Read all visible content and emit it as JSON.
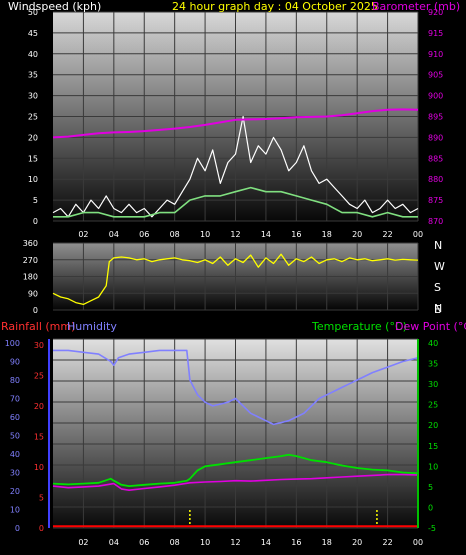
{
  "header": {
    "windspeed_label": "Windspeed (kph)",
    "title": "24 hour graph day : 04 October 2025",
    "barometer_label": "Barometer (mb)"
  },
  "bottom_header": {
    "rainfall_label": "Rainfall (mm)",
    "humidity_label": "Humidity",
    "temperature_label": "Temperature (°C)",
    "dewpoint_label": "Dew Point (°C)"
  },
  "colors": {
    "barometer": "#e000e0",
    "windspeed": "#ffffff",
    "wind_avg": "#80e080",
    "direction": "#ffff00",
    "humidity": "#8080ff",
    "temperature": "#00e000",
    "dewpoint": "#e000e0",
    "rainfall": "#ff0000",
    "header_yellow": "#ffff00"
  },
  "x_tick_labels": [
    "02",
    "04",
    "06",
    "08",
    "10",
    "12",
    "14",
    "16",
    "18",
    "20",
    "22",
    "00"
  ],
  "chart_data": [
    {
      "type": "line",
      "name": "wind-barometer",
      "y_left_ticks": [
        0,
        5,
        10,
        15,
        20,
        25,
        30,
        35,
        40,
        45,
        50
      ],
      "ylim_left": [
        0,
        50
      ],
      "y_right_ticks": [
        870,
        875,
        880,
        885,
        890,
        895,
        900,
        905,
        910,
        915,
        920
      ],
      "ylim_right": [
        870,
        920
      ],
      "barometer": [
        [
          0,
          890.0
        ],
        [
          1,
          890.2
        ],
        [
          2,
          890.6
        ],
        [
          3,
          891.0
        ],
        [
          4,
          891.2
        ],
        [
          5,
          891.3
        ],
        [
          6,
          891.5
        ],
        [
          7,
          891.8
        ],
        [
          8,
          892.1
        ],
        [
          9,
          892.5
        ],
        [
          10,
          893.0
        ],
        [
          11,
          893.6
        ],
        [
          12,
          894.2
        ],
        [
          13,
          894.3
        ],
        [
          14,
          894.4
        ],
        [
          15,
          894.6
        ],
        [
          16,
          894.8
        ],
        [
          17,
          894.9
        ],
        [
          18,
          895.0
        ],
        [
          19,
          895.3
        ],
        [
          20,
          895.8
        ],
        [
          21,
          896.3
        ],
        [
          22,
          896.6
        ],
        [
          23,
          896.7
        ],
        [
          24,
          896.6
        ]
      ],
      "wind_gust": [
        [
          0,
          2
        ],
        [
          0.5,
          3
        ],
        [
          1,
          1
        ],
        [
          1.5,
          4
        ],
        [
          2,
          2
        ],
        [
          2.5,
          5
        ],
        [
          3,
          3
        ],
        [
          3.5,
          6
        ],
        [
          4,
          3
        ],
        [
          4.5,
          2
        ],
        [
          5,
          4
        ],
        [
          5.5,
          2
        ],
        [
          6,
          3
        ],
        [
          6.5,
          1
        ],
        [
          7,
          3
        ],
        [
          7.5,
          5
        ],
        [
          8,
          4
        ],
        [
          8.5,
          7
        ],
        [
          9,
          10
        ],
        [
          9.5,
          15
        ],
        [
          10,
          12
        ],
        [
          10.5,
          17
        ],
        [
          11,
          9
        ],
        [
          11.5,
          14
        ],
        [
          12,
          16
        ],
        [
          12.5,
          25
        ],
        [
          13,
          14
        ],
        [
          13.5,
          18
        ],
        [
          14,
          16
        ],
        [
          14.5,
          20
        ],
        [
          15,
          17
        ],
        [
          15.5,
          12
        ],
        [
          16,
          14
        ],
        [
          16.5,
          18
        ],
        [
          17,
          12
        ],
        [
          17.5,
          9
        ],
        [
          18,
          10
        ],
        [
          18.5,
          8
        ],
        [
          19,
          6
        ],
        [
          19.5,
          4
        ],
        [
          20,
          3
        ],
        [
          20.5,
          5
        ],
        [
          21,
          2
        ],
        [
          21.5,
          3
        ],
        [
          22,
          5
        ],
        [
          22.5,
          3
        ],
        [
          23,
          4
        ],
        [
          23.5,
          2
        ],
        [
          24,
          3
        ]
      ],
      "wind_avg": [
        [
          0,
          1
        ],
        [
          1,
          1
        ],
        [
          2,
          2
        ],
        [
          3,
          2
        ],
        [
          4,
          1
        ],
        [
          5,
          1
        ],
        [
          6,
          1
        ],
        [
          7,
          2
        ],
        [
          8,
          2
        ],
        [
          9,
          5
        ],
        [
          10,
          6
        ],
        [
          11,
          6
        ],
        [
          12,
          7
        ],
        [
          13,
          8
        ],
        [
          14,
          7
        ],
        [
          15,
          7
        ],
        [
          16,
          6
        ],
        [
          17,
          5
        ],
        [
          18,
          4
        ],
        [
          19,
          2
        ],
        [
          20,
          2
        ],
        [
          21,
          1
        ],
        [
          22,
          2
        ],
        [
          23,
          1
        ],
        [
          24,
          1
        ]
      ]
    },
    {
      "type": "line",
      "name": "wind-direction",
      "y_left_ticks": [
        0,
        90,
        180,
        270,
        360
      ],
      "ylim": [
        0,
        360
      ],
      "y_right_labels": [
        "N",
        "W",
        "S",
        "E",
        "N"
      ],
      "direction": [
        [
          0,
          90
        ],
        [
          0.5,
          70
        ],
        [
          1,
          60
        ],
        [
          1.5,
          40
        ],
        [
          2,
          30
        ],
        [
          2.5,
          50
        ],
        [
          3,
          70
        ],
        [
          3.5,
          130
        ],
        [
          3.7,
          260
        ],
        [
          4,
          280
        ],
        [
          4.5,
          285
        ],
        [
          5,
          280
        ],
        [
          5.5,
          270
        ],
        [
          6,
          275
        ],
        [
          6.5,
          260
        ],
        [
          7,
          270
        ],
        [
          7.5,
          275
        ],
        [
          8,
          280
        ],
        [
          8.5,
          270
        ],
        [
          9,
          265
        ],
        [
          9.5,
          255
        ],
        [
          10,
          270
        ],
        [
          10.5,
          250
        ],
        [
          11,
          285
        ],
        [
          11.5,
          240
        ],
        [
          12,
          275
        ],
        [
          12.5,
          255
        ],
        [
          13,
          295
        ],
        [
          13.5,
          230
        ],
        [
          14,
          280
        ],
        [
          14.5,
          250
        ],
        [
          15,
          300
        ],
        [
          15.5,
          240
        ],
        [
          16,
          275
        ],
        [
          16.5,
          260
        ],
        [
          17,
          285
        ],
        [
          17.5,
          250
        ],
        [
          18,
          270
        ],
        [
          18.5,
          275
        ],
        [
          19,
          260
        ],
        [
          19.5,
          280
        ],
        [
          20,
          270
        ],
        [
          20.5,
          275
        ],
        [
          21,
          265
        ],
        [
          21.5,
          270
        ],
        [
          22,
          275
        ],
        [
          22.5,
          268
        ],
        [
          23,
          272
        ],
        [
          23.5,
          270
        ],
        [
          24,
          268
        ]
      ]
    },
    {
      "type": "line",
      "name": "temp-humidity-rain",
      "y_left_rain_ticks": [
        0,
        5,
        10,
        15,
        20,
        25,
        30
      ],
      "ylim_rain": [
        0,
        30
      ],
      "y_left_humidity_ticks": [
        0,
        10,
        20,
        30,
        40,
        50,
        60,
        70,
        80,
        90,
        100
      ],
      "ylim_humidity": [
        0,
        100
      ],
      "y_right_temp_ticks": [
        -5,
        0,
        5,
        10,
        15,
        20,
        25,
        30,
        35,
        40
      ],
      "ylim_temp": [
        -5,
        40
      ],
      "humidity": [
        [
          0,
          96
        ],
        [
          1,
          96
        ],
        [
          2,
          95
        ],
        [
          3,
          94
        ],
        [
          3.8,
          90
        ],
        [
          4,
          88
        ],
        [
          4.3,
          92
        ],
        [
          5,
          94
        ],
        [
          6,
          95
        ],
        [
          7,
          96
        ],
        [
          8,
          96
        ],
        [
          8.8,
          96
        ],
        [
          9,
          80
        ],
        [
          9.5,
          72
        ],
        [
          10,
          68
        ],
        [
          10.5,
          66
        ],
        [
          11,
          67
        ],
        [
          11.5,
          68
        ],
        [
          12,
          70
        ],
        [
          12.5,
          66
        ],
        [
          13,
          62
        ],
        [
          13.5,
          60
        ],
        [
          14,
          58
        ],
        [
          14.5,
          56
        ],
        [
          15,
          57
        ],
        [
          15.5,
          58
        ],
        [
          16,
          60
        ],
        [
          16.5,
          62
        ],
        [
          17,
          66
        ],
        [
          17.5,
          70
        ],
        [
          18,
          72
        ],
        [
          18.5,
          74
        ],
        [
          19,
          76
        ],
        [
          19.5,
          78
        ],
        [
          20,
          80
        ],
        [
          21,
          84
        ],
        [
          22,
          87
        ],
        [
          23,
          90
        ],
        [
          24,
          92
        ]
      ],
      "temperature": [
        [
          0,
          5.8
        ],
        [
          1,
          5.6
        ],
        [
          2,
          5.8
        ],
        [
          3,
          6.0
        ],
        [
          3.8,
          7.0
        ],
        [
          4,
          6.5
        ],
        [
          4.5,
          5.5
        ],
        [
          5,
          5.2
        ],
        [
          6,
          5.5
        ],
        [
          7,
          5.8
        ],
        [
          8,
          6.0
        ],
        [
          8.8,
          6.5
        ],
        [
          9,
          7.0
        ],
        [
          9.5,
          9.0
        ],
        [
          10,
          10.0
        ],
        [
          11,
          10.5
        ],
        [
          12,
          11.0
        ],
        [
          13,
          11.5
        ],
        [
          14,
          12.0
        ],
        [
          15,
          12.5
        ],
        [
          15.5,
          12.8
        ],
        [
          16,
          12.5
        ],
        [
          16.5,
          12.0
        ],
        [
          17,
          11.5
        ],
        [
          18,
          11.0
        ],
        [
          19,
          10.2
        ],
        [
          20,
          9.6
        ],
        [
          21,
          9.2
        ],
        [
          22,
          9.0
        ],
        [
          23,
          8.5
        ],
        [
          24,
          8.3
        ]
      ],
      "dewpoint": [
        [
          0,
          5.2
        ],
        [
          1,
          4.8
        ],
        [
          2,
          5.0
        ],
        [
          3,
          5.2
        ],
        [
          4,
          5.8
        ],
        [
          4.5,
          4.5
        ],
        [
          5,
          4.2
        ],
        [
          6,
          4.6
        ],
        [
          7,
          5.0
        ],
        [
          8,
          5.4
        ],
        [
          9,
          6.0
        ],
        [
          10,
          6.2
        ],
        [
          11,
          6.3
        ],
        [
          12,
          6.5
        ],
        [
          13,
          6.4
        ],
        [
          14,
          6.6
        ],
        [
          15,
          6.8
        ],
        [
          16,
          6.9
        ],
        [
          17,
          7.0
        ],
        [
          18,
          7.2
        ],
        [
          19,
          7.4
        ],
        [
          20,
          7.6
        ],
        [
          21,
          7.8
        ],
        [
          22,
          8.0
        ],
        [
          23,
          8.0
        ],
        [
          24,
          7.9
        ]
      ],
      "rainfall": [
        [
          0,
          0.3
        ],
        [
          24,
          0.3
        ]
      ]
    }
  ]
}
